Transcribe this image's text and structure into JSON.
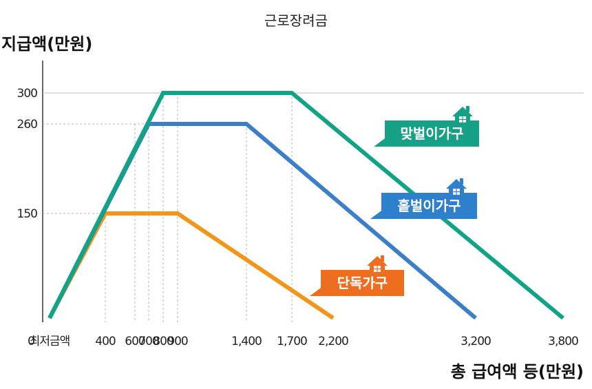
{
  "chart_data": {
    "type": "line",
    "title": "근로장려금",
    "ylabel": "지급액(만원)",
    "xlabel": "총 급여액 등(만원)",
    "y_ticks": [
      300,
      260,
      150
    ],
    "x_ticks": [
      {
        "value": 0,
        "label": "0"
      },
      {
        "value": 130,
        "label": "최저금액"
      },
      {
        "value": 400,
        "label": "400"
      },
      {
        "value": 600,
        "label": "600"
      },
      {
        "value": 700,
        "label": "700"
      },
      {
        "value": 800,
        "label": "800"
      },
      {
        "value": 900,
        "label": "900"
      },
      {
        "value": 1400,
        "label": "1,400"
      },
      {
        "value": 1700,
        "label": "1,700"
      },
      {
        "value": 2200,
        "label": "2,200"
      },
      {
        "value": 3200,
        "label": "3,200"
      },
      {
        "value": 3800,
        "label": "3,800"
      }
    ],
    "series": [
      {
        "name": "맞벌이가구",
        "color": "#11a385",
        "points": [
          [
            130,
            0
          ],
          [
            800,
            300
          ],
          [
            1700,
            300
          ],
          [
            3800,
            0
          ]
        ]
      },
      {
        "name": "홑벌이가구",
        "color": "#3c7fc9",
        "points": [
          [
            130,
            0
          ],
          [
            700,
            260
          ],
          [
            1400,
            260
          ],
          [
            3200,
            0
          ]
        ]
      },
      {
        "name": "단독가구",
        "color": "#f29519",
        "points": [
          [
            130,
            0
          ],
          [
            400,
            150
          ],
          [
            900,
            150
          ],
          [
            2200,
            0
          ]
        ]
      }
    ],
    "legend_tags": [
      {
        "label": "맞벌이가구",
        "color": "#16a085",
        "icon": "house-icon"
      },
      {
        "label": "홑벌이가구",
        "color": "#2f80cc",
        "icon": "house-icon"
      },
      {
        "label": "단독가구",
        "color": "#ee6e1f",
        "icon": "house-icon"
      }
    ],
    "grid": "dashed guides at y ticks and at breakpoints",
    "ylim": [
      0,
      300
    ]
  }
}
